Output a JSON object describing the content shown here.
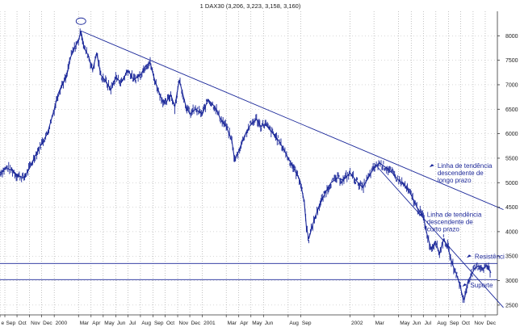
{
  "chart_data": {
    "type": "line",
    "title": "1 DAX30 (3,206, 3,223, 3,158, 3,160)",
    "xlabel": "",
    "ylabel": "",
    "ylim": [
      2300,
      8500
    ],
    "yticks": [
      2500,
      3000,
      3500,
      4000,
      4500,
      5000,
      5500,
      6000,
      6500,
      7000,
      7500,
      8000
    ],
    "xlim": [
      "1999-09-01",
      "2002-12-31"
    ],
    "xticks": [
      {
        "label": "e",
        "x": "1999-08-20"
      },
      {
        "label": "Sep",
        "x": "1999-09-01"
      },
      {
        "label": "Oct",
        "x": "1999-10-01"
      },
      {
        "label": "Nov",
        "x": "1999-11-01"
      },
      {
        "label": "Dec",
        "x": "1999-12-01"
      },
      {
        "label": "2000",
        "x": "2000-01-01"
      },
      {
        "label": "Mar",
        "x": "2000-03-01"
      },
      {
        "label": "Apr",
        "x": "2000-04-01"
      },
      {
        "label": "May",
        "x": "2000-05-01"
      },
      {
        "label": "Jun",
        "x": "2000-06-01"
      },
      {
        "label": "Jul",
        "x": "2000-07-01"
      },
      {
        "label": "Aug",
        "x": "2000-08-01"
      },
      {
        "label": "Sep",
        "x": "2000-09-01"
      },
      {
        "label": "Oct",
        "x": "2000-10-01"
      },
      {
        "label": "Nov",
        "x": "2000-11-01"
      },
      {
        "label": "Dec",
        "x": "2000-12-01"
      },
      {
        "label": "2001",
        "x": "2001-01-01"
      },
      {
        "label": "Mar",
        "x": "2001-03-01"
      },
      {
        "label": "Apr",
        "x": "2001-04-01"
      },
      {
        "label": "May",
        "x": "2001-05-01"
      },
      {
        "label": "Jun",
        "x": "2001-06-01"
      },
      {
        "label": "Aug",
        "x": "2001-08-01"
      },
      {
        "label": "Sep",
        "x": "2001-09-01"
      },
      {
        "label": "2002",
        "x": "2002-01-01"
      },
      {
        "label": "Mar",
        "x": "2002-03-01"
      },
      {
        "label": "May",
        "x": "2002-05-01"
      },
      {
        "label": "Jun",
        "x": "2002-06-01"
      },
      {
        "label": "Jul",
        "x": "2002-07-01"
      },
      {
        "label": "Aug",
        "x": "2002-08-01"
      },
      {
        "label": "Sep",
        "x": "2002-09-01"
      },
      {
        "label": "Oct",
        "x": "2002-10-01"
      },
      {
        "label": "Nov",
        "x": "2002-11-01"
      },
      {
        "label": "Dec",
        "x": "2002-12-01"
      }
    ],
    "series": [
      {
        "color": "#1a2799",
        "points": [
          [
            "1999-08-20",
            5200
          ],
          [
            "1999-09-05",
            5300
          ],
          [
            "1999-09-20",
            5250
          ],
          [
            "1999-10-01",
            5150
          ],
          [
            "1999-10-18",
            5100
          ],
          [
            "1999-11-01",
            5300
          ],
          [
            "1999-11-15",
            5550
          ],
          [
            "1999-12-01",
            5800
          ],
          [
            "1999-12-15",
            6000
          ],
          [
            "2000-01-01",
            6500
          ],
          [
            "2000-01-10",
            6800
          ],
          [
            "2000-01-20",
            7000
          ],
          [
            "2000-01-31",
            7150
          ],
          [
            "2000-02-10",
            7550
          ],
          [
            "2000-02-20",
            7750
          ],
          [
            "2000-03-01",
            7900
          ],
          [
            "2000-03-07",
            8100
          ],
          [
            "2000-03-15",
            7750
          ],
          [
            "2000-03-25",
            7600
          ],
          [
            "2000-04-05",
            7300
          ],
          [
            "2000-04-15",
            7650
          ],
          [
            "2000-04-25",
            7200
          ],
          [
            "2000-05-05",
            7100
          ],
          [
            "2000-05-20",
            6900
          ],
          [
            "2000-06-01",
            7150
          ],
          [
            "2000-06-15",
            7050
          ],
          [
            "2000-07-01",
            7300
          ],
          [
            "2000-07-15",
            7100
          ],
          [
            "2000-08-01",
            7200
          ],
          [
            "2000-08-15",
            7400
          ],
          [
            "2000-08-25",
            7450
          ],
          [
            "2000-09-05",
            7100
          ],
          [
            "2000-09-20",
            6750
          ],
          [
            "2000-10-01",
            6600
          ],
          [
            "2000-10-15",
            6800
          ],
          [
            "2000-10-25",
            6550
          ],
          [
            "2000-11-05",
            7100
          ],
          [
            "2000-11-20",
            6600
          ],
          [
            "2000-12-01",
            6400
          ],
          [
            "2000-12-15",
            6500
          ],
          [
            "2001-01-01",
            6400
          ],
          [
            "2001-01-15",
            6700
          ],
          [
            "2001-02-01",
            6550
          ],
          [
            "2001-02-15",
            6300
          ],
          [
            "2001-03-01",
            6150
          ],
          [
            "2001-03-15",
            5850
          ],
          [
            "2001-03-22",
            5450
          ],
          [
            "2001-04-01",
            5650
          ],
          [
            "2001-04-15",
            5950
          ],
          [
            "2001-05-01",
            6200
          ],
          [
            "2001-05-15",
            6300
          ],
          [
            "2001-05-25",
            6150
          ],
          [
            "2001-06-05",
            6200
          ],
          [
            "2001-06-20",
            6050
          ],
          [
            "2001-07-05",
            5900
          ],
          [
            "2001-07-20",
            5700
          ],
          [
            "2001-08-01",
            5500
          ],
          [
            "2001-08-15",
            5300
          ],
          [
            "2001-08-30",
            5050
          ],
          [
            "2001-09-10",
            4600
          ],
          [
            "2001-09-15",
            4100
          ],
          [
            "2001-09-21",
            3850
          ],
          [
            "2001-10-01",
            4150
          ],
          [
            "2001-10-15",
            4500
          ],
          [
            "2001-11-01",
            4800
          ],
          [
            "2001-11-15",
            5000
          ],
          [
            "2001-12-01",
            5100
          ],
          [
            "2001-12-15",
            5050
          ],
          [
            "2002-01-01",
            5200
          ],
          [
            "2002-01-15",
            5050
          ],
          [
            "2002-02-01",
            4900
          ],
          [
            "2002-02-15",
            5100
          ],
          [
            "2002-03-01",
            5300
          ],
          [
            "2002-03-15",
            5400
          ],
          [
            "2002-04-01",
            5300
          ],
          [
            "2002-04-15",
            5200
          ],
          [
            "2002-05-01",
            5050
          ],
          [
            "2002-05-15",
            4950
          ],
          [
            "2002-06-01",
            4750
          ],
          [
            "2002-06-15",
            4500
          ],
          [
            "2002-07-01",
            4300
          ],
          [
            "2002-07-10",
            3950
          ],
          [
            "2002-07-20",
            3650
          ],
          [
            "2002-07-31",
            3800
          ],
          [
            "2002-08-10",
            3550
          ],
          [
            "2002-08-20",
            3850
          ],
          [
            "2002-08-30",
            3700
          ],
          [
            "2002-09-10",
            3350
          ],
          [
            "2002-09-20",
            3150
          ],
          [
            "2002-09-30",
            2900
          ],
          [
            "2002-10-05",
            2700
          ],
          [
            "2002-10-10",
            2600
          ],
          [
            "2002-10-20",
            3000
          ],
          [
            "2002-10-30",
            3150
          ],
          [
            "2002-11-05",
            3250
          ],
          [
            "2002-11-15",
            3300
          ],
          [
            "2002-11-25",
            3250
          ],
          [
            "2002-12-05",
            3300
          ],
          [
            "2002-12-15",
            3160
          ]
        ]
      }
    ],
    "lines": [
      {
        "kind": "trend",
        "from": [
          "2000-03-07",
          8100
        ],
        "to": [
          "2003-01-15",
          4450
        ]
      },
      {
        "kind": "trend",
        "from": [
          "2002-03-01",
          5400
        ],
        "to": [
          "2003-01-15",
          2450
        ]
      },
      {
        "kind": "horizontal",
        "y": 3350
      },
      {
        "kind": "horizontal",
        "y": 3020
      }
    ],
    "annotations": [
      {
        "lines": [
          "Linha de tendência",
          "descendente de",
          "longo prazo"
        ],
        "at": [
          "2002-08-05",
          5300
        ]
      },
      {
        "lines": [
          "Linha de tendência",
          "descendente de",
          "curto prazo"
        ],
        "at": [
          "2002-07-10",
          4300
        ]
      },
      {
        "lines": [
          "Resistênci"
        ],
        "at": [
          "2002-11-05",
          3450
        ]
      },
      {
        "lines": [
          "Suporte"
        ],
        "at": [
          "2002-10-25",
          2860
        ]
      }
    ],
    "grid": true
  }
}
